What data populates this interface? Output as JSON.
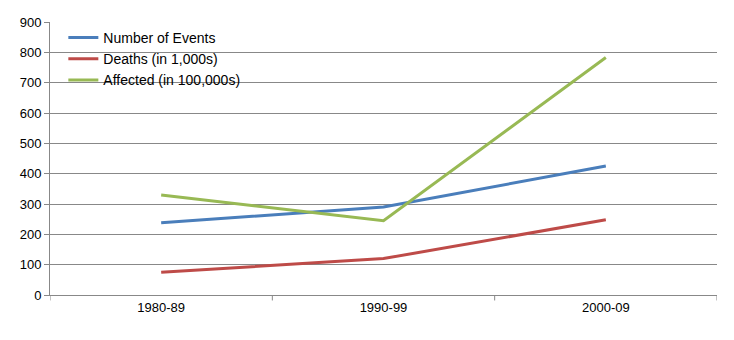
{
  "chart_data": {
    "type": "line",
    "categories": [
      "1980-89",
      "1990-99",
      "2000-09"
    ],
    "series": [
      {
        "name": "Number of Events",
        "color": "#4a7ebb",
        "values": [
          238,
          290,
          425
        ]
      },
      {
        "name": "Deaths (in 1,000s)",
        "color": "#be4b48",
        "values": [
          75,
          120,
          248
        ]
      },
      {
        "name": "Affected (in 100,000s)",
        "color": "#98b954",
        "values": [
          330,
          245,
          783
        ]
      }
    ],
    "ylim": [
      0,
      900
    ],
    "yticks": [
      0,
      100,
      200,
      300,
      400,
      500,
      600,
      700,
      800,
      900
    ],
    "grid": true,
    "legend": "top left"
  }
}
